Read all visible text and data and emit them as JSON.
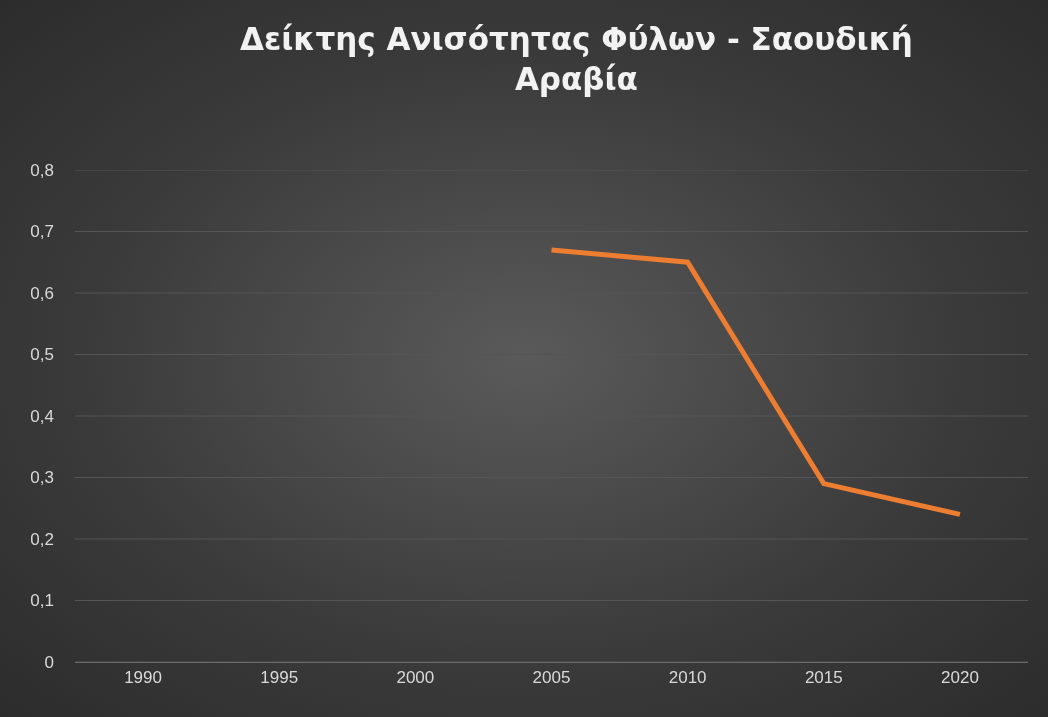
{
  "chart_data": {
    "type": "line",
    "title": "Δείκτης Ανισότητας Φύλων - Σαουδική Αραβία",
    "categories": [
      "1990",
      "1995",
      "2000",
      "2005",
      "2010",
      "2015",
      "2020"
    ],
    "series": [
      {
        "color": "#ed7d31",
        "values": [
          null,
          null,
          null,
          0.67,
          0.65,
          0.29,
          0.24
        ]
      }
    ],
    "ylim": [
      0,
      0.8
    ],
    "yticks": [
      0,
      {
        "value": 0.1,
        "label": "0,1"
      },
      {
        "value": 0.2,
        "label": "0,2"
      },
      {
        "value": 0.3,
        "label": "0,3"
      },
      {
        "value": 0.4,
        "label": "0,4"
      },
      {
        "value": 0.5,
        "label": "0,5"
      },
      {
        "value": 0.6,
        "label": "0,6"
      },
      {
        "value": 0.7,
        "label": "0,7"
      },
      {
        "value": 0.8,
        "label": "0,8"
      }
    ],
    "grid": "y",
    "marker": "none",
    "line_style": "solid"
  }
}
